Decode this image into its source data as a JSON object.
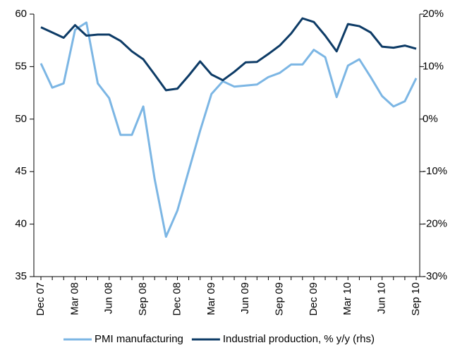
{
  "chart_data": {
    "type": "line",
    "categories": [
      "Dec 07",
      null,
      null,
      "Mar 08",
      null,
      null,
      "Jun 08",
      null,
      null,
      "Sep 08",
      null,
      null,
      "Dec 08",
      null,
      null,
      "Mar 09",
      null,
      null,
      "Jun 09",
      null,
      null,
      "Sep 09",
      null,
      null,
      "Dec 09",
      null,
      null,
      "Mar 10",
      null,
      null,
      "Jun 10",
      null,
      null,
      "Sep 10"
    ],
    "series": [
      {
        "name": "PMI manufacturing",
        "color": "#7cb6e4",
        "axis": "y",
        "values": [
          55.3,
          53.0,
          53.4,
          58.5,
          59.2,
          53.4,
          52.0,
          48.5,
          48.5,
          51.2,
          44.3,
          38.8,
          41.3,
          45.1,
          48.9,
          52.4,
          53.6,
          53.1,
          53.2,
          53.3,
          54.0,
          54.4,
          55.2,
          55.2,
          56.6,
          55.9,
          52.1,
          55.1,
          55.7,
          54.0,
          52.2,
          51.2,
          51.7,
          53.9
        ]
      },
      {
        "name": "Industrial production, % y/y (rhs)",
        "color": "#0d3b66",
        "axis": "y2",
        "values": [
          17.5,
          16.5,
          15.5,
          17.9,
          15.9,
          16.1,
          16.1,
          14.9,
          12.9,
          11.4,
          8.5,
          5.5,
          5.8,
          8.3,
          11.0,
          8.5,
          7.4,
          9.0,
          10.8,
          10.9,
          12.4,
          14.0,
          16.3,
          19.2,
          18.5,
          15.9,
          12.9,
          18.1,
          17.7,
          16.5,
          13.8,
          13.6,
          14.0,
          13.4
        ]
      }
    ],
    "ylim": [
      35,
      60
    ],
    "yticks": [
      35,
      40,
      45,
      50,
      55,
      60
    ],
    "y2lim": [
      -30,
      20
    ],
    "y2ticks": [
      {
        "value": -30,
        "label": "-30%"
      },
      {
        "value": -20,
        "label": "-20%"
      },
      {
        "value": -10,
        "label": "-10%"
      },
      {
        "value": 0,
        "label": "0%"
      },
      {
        "value": 10,
        "label": "10%"
      },
      {
        "value": 20,
        "label": "20%"
      }
    ],
    "grid": false,
    "legend": "bottom"
  }
}
